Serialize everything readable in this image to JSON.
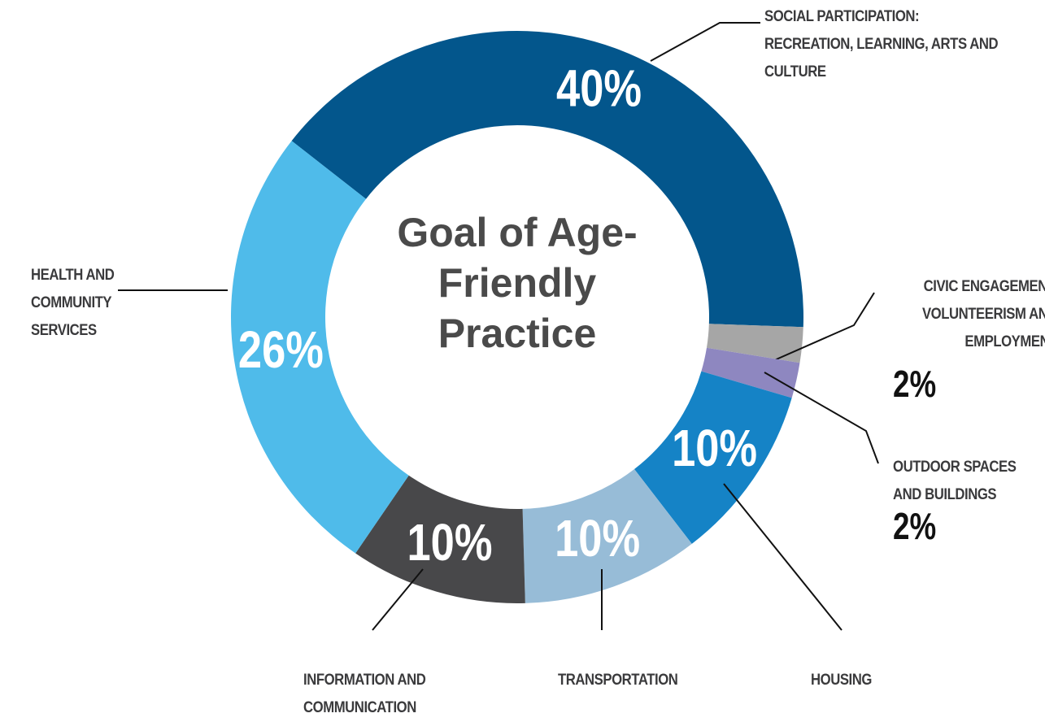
{
  "chart_data": {
    "type": "donut",
    "title": "Goal of Age-Friendly Practice",
    "categories": [
      "SOCIAL PARTICIPATION: RECREATION, LEARNING, ARTS AND CULTURE",
      "CIVIC ENGAGEMENT, VOLUNTEERISM AND EMPLOYMENT",
      "OUTDOOR SPACES AND BUILDINGS",
      "HOUSING",
      "TRANSPORTATION",
      "INFORMATION AND COMMUNICATION",
      "HEALTH AND COMMUNITY SERVICES"
    ],
    "values": [
      40,
      2,
      2,
      10,
      10,
      10,
      26
    ],
    "value_labels": [
      "40%",
      "2%",
      "2%",
      "10%",
      "10%",
      "10%",
      "26%"
    ],
    "colors": [
      "#03568c",
      "#a6a6a6",
      "#8e87c0",
      "#1583c6",
      "#97bcd7",
      "#48484a",
      "#4fbbea"
    ]
  }
}
